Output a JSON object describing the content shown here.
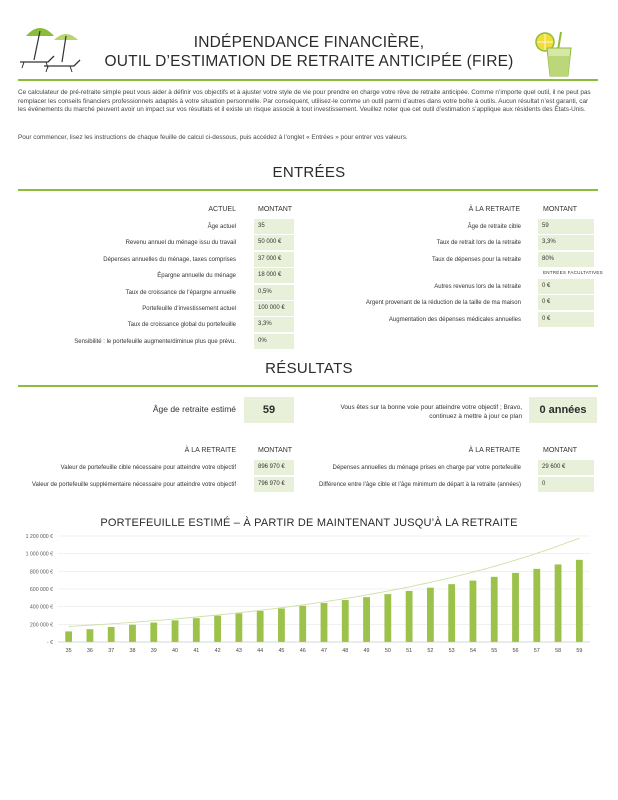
{
  "header": {
    "title_line1": "INDÉPENDANCE FINANCIÈRE,",
    "title_line2": "OUTIL D’ESTIMATION DE RETRAITE ANTICIPÉE (FIRE)"
  },
  "intro": "Ce calculateur de pré-retraite simple peut vous aider à définir vos objectifs et à ajuster votre style de vie pour prendre en charge votre rêve de retraite anticipée. Comme n’importe quel outil, il ne peut pas remplacer les conseils financiers professionnels adaptés à votre situation personnelle. Par conséquent, utilisez-le comme un outil parmi d’autres dans votre boîte à outils. Aucun résultat n’est garanti, car les événements du marché peuvent avoir un impact sur vos résultats et il existe un risque associé à tout investissement. Veuillez noter que cet outil d’estimation s’applique aux résidents des États-Unis.",
  "intro2": "Pour commencer, lisez les instructions de chaque feuille de calcul ci-dessous, puis accédez à l’onglet « Entrées » pour entrer vos valeurs.",
  "entrees": {
    "title": "ENTRÉES",
    "left_header_label": "ACTUEL",
    "left_header_value": "MONTANT",
    "left_rows": [
      {
        "label": "Âge actuel",
        "value": "35"
      },
      {
        "label": "Revenu annuel du ménage issu du travail",
        "value": "50 000 €"
      },
      {
        "label": "Dépenses annuelles du ménage, taxes comprises",
        "value": "37 000 €"
      },
      {
        "label": "Épargne annuelle du ménage",
        "value": "18 000 €"
      },
      {
        "label": "Taux de croissance de l’épargne annuelle",
        "value": "0,5%"
      },
      {
        "label": "Portefeuille d’investissement actuel",
        "value": "100 000 €"
      },
      {
        "label": "Taux de croissance global du portefeuille",
        "value": "3,3%"
      },
      {
        "label": "Sensibilité : le portefeuille augmente/diminue plus que prévu.",
        "value": "0%"
      }
    ],
    "right_header_label": "À LA RETRAITE",
    "right_header_value": "MONTANT",
    "right_rows": [
      {
        "label": "Âge de retraite cible",
        "value": "59"
      },
      {
        "label": "Taux de retrait lors de la retraite",
        "value": "3,3%"
      },
      {
        "label": "Taux de dépenses pour la retraite",
        "value": "80%"
      }
    ],
    "optional_label": "ENTRÉES FACULTATIVES",
    "optional_rows": [
      {
        "label": "Autres revenus lors de la retraite",
        "value": "0 €"
      },
      {
        "label": "Argent provenant de la réduction de la taille de ma maison",
        "value": "0 €"
      },
      {
        "label": "Augmentation des dépenses médicales annuelles",
        "value": "0 €"
      }
    ]
  },
  "resultats": {
    "title": "RÉSULTATS",
    "retirement_age_label": "Âge de retraite estimé",
    "retirement_age_value": "59",
    "message_line1": "Vous êtes sur la bonne voie pour atteindre votre objectif ; Bravo,",
    "message_line2": "continuez à mettre à jour ce plan",
    "years_value": "0 années",
    "left_header_label": "À LA RETRAITE",
    "left_header_value": "MONTANT",
    "left_rows": [
      {
        "label": "Valeur de portefeuille cible nécessaire pour atteindre votre objectif",
        "value": "896 970 €"
      },
      {
        "label": "Valeur de portefeuille supplémentaire nécessaire pour atteindre votre objectif",
        "value": "796 970 €"
      }
    ],
    "right_header_label": "À LA RETRAITE",
    "right_header_value": "MONTANT",
    "right_rows": [
      {
        "label": "Dépenses annuelles du ménage prises en charge par votre portefeuille",
        "value": "29 600 €"
      },
      {
        "label": "Différence entre l’âge cible et l’âge minimum de départ à la retraite (années)",
        "value": "0"
      }
    ]
  },
  "colors": {
    "accent": "#8dbb3c",
    "input_fill": "#e9f0d9",
    "bar": "#9cc24a",
    "trend": "#cfe0a6"
  },
  "icons": [
    "beach-umbrella-icon",
    "lemonade-glass-icon"
  ],
  "chart_data": {
    "type": "bar",
    "title": "PORTEFEUILLE ESTIMÉ – À PARTIR DE MAINTENANT JUSQU’À LA RETRAITE",
    "categories": [
      "35",
      "36",
      "37",
      "38",
      "39",
      "40",
      "41",
      "42",
      "43",
      "44",
      "45",
      "46",
      "47",
      "48",
      "49",
      "50",
      "51",
      "52",
      "53",
      "54",
      "55",
      "56",
      "57",
      "58",
      "59"
    ],
    "values": [
      120000,
      145000,
      170000,
      195000,
      220000,
      245000,
      270000,
      298000,
      325000,
      352000,
      380000,
      410000,
      442000,
      475000,
      508000,
      542000,
      578000,
      615000,
      655000,
      695000,
      738000,
      782000,
      828000,
      878000,
      930000
    ],
    "trendline": "exponential",
    "ylim": [
      0,
      1200000
    ],
    "yticks": [
      0,
      200000,
      400000,
      600000,
      800000,
      1000000,
      1200000
    ],
    "ytick_labels": [
      "- €",
      "200 000 €",
      "400 000 €",
      "600 000 €",
      "800 000 €",
      "1 000 000 €",
      "1 200 000 €"
    ],
    "grid": true,
    "legend": "none"
  }
}
